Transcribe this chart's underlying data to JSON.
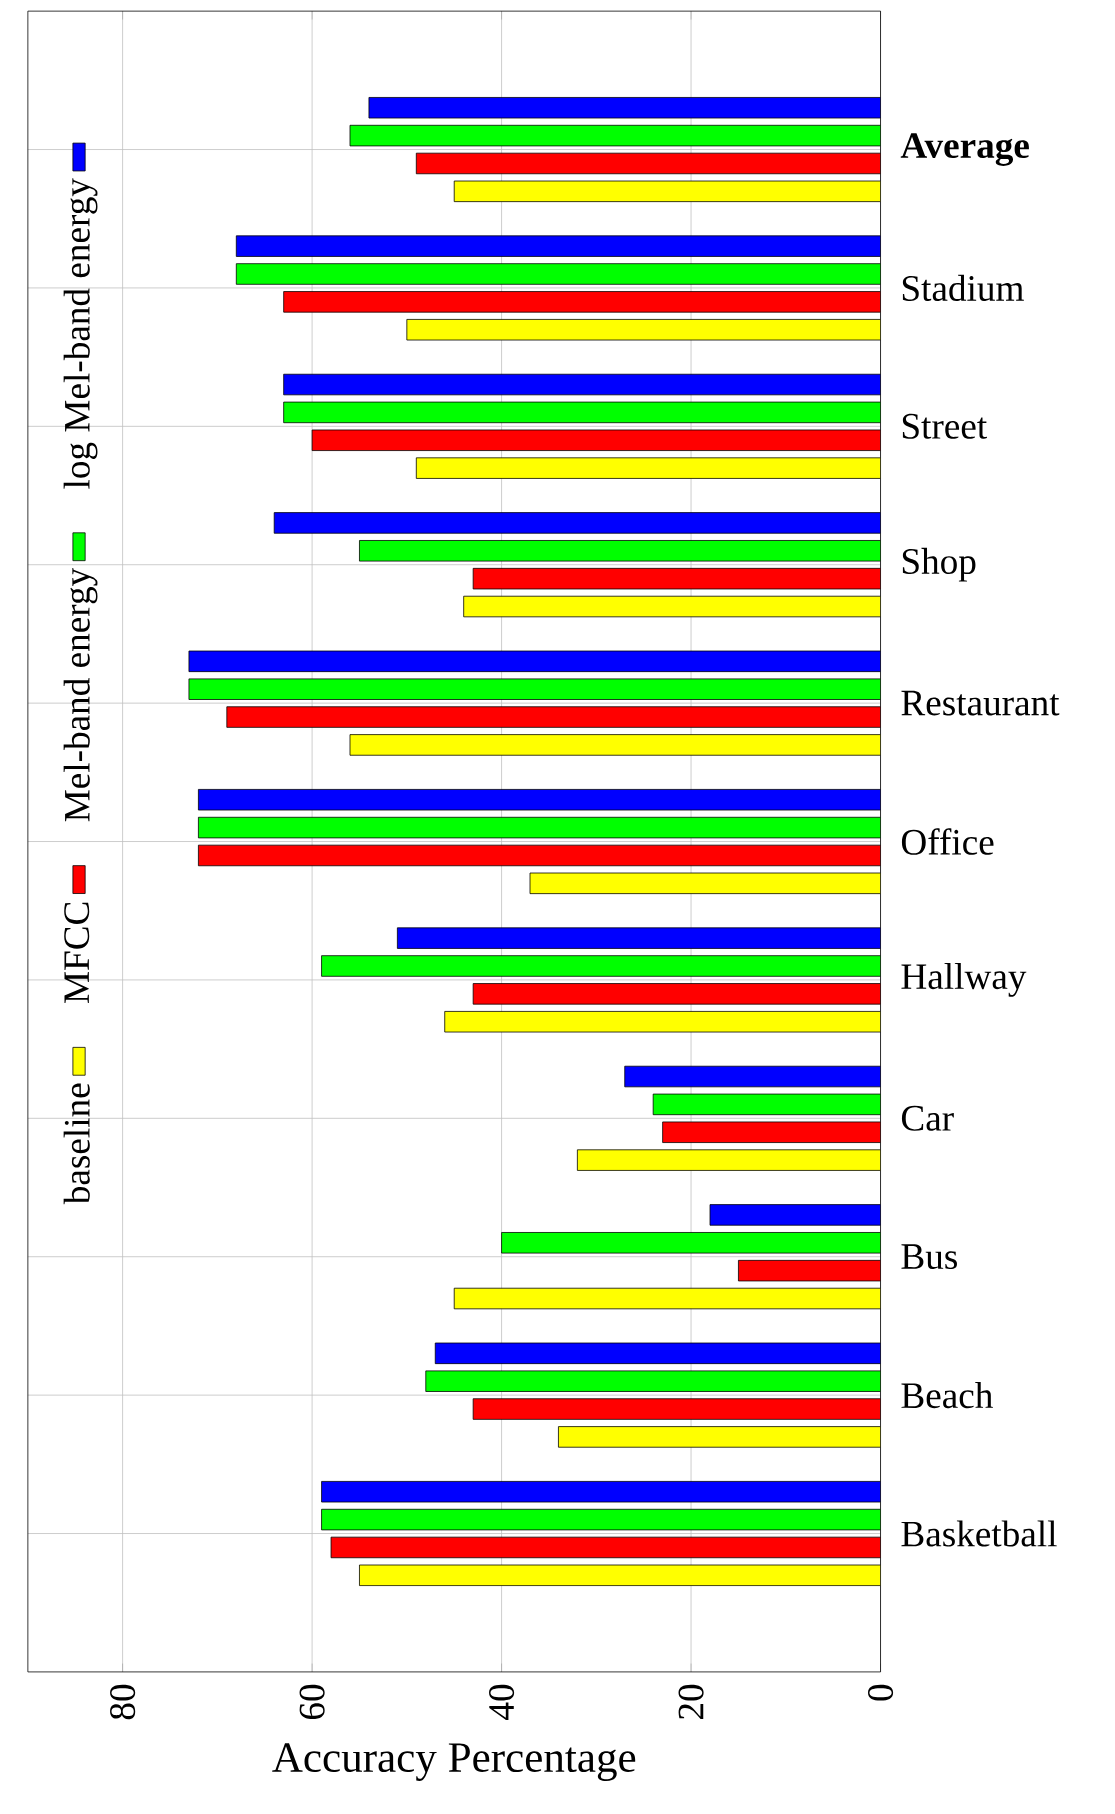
{
  "chart_data": {
    "type": "bar",
    "orientation": "horizontal",
    "xlabel": "Accuracy Percentage",
    "categories": [
      "Average",
      "Stadium",
      "Street",
      "Shop",
      "Restaurant",
      "Office",
      "Hallway",
      "Car",
      "Bus",
      "Beach",
      "Basketball"
    ],
    "series": [
      {
        "name": "baseline",
        "color": "#ffff00",
        "values": [
          45,
          50,
          49,
          44,
          56,
          37,
          46,
          32,
          45,
          34,
          55
        ]
      },
      {
        "name": "MFCC",
        "color": "#ff0000",
        "values": [
          49,
          63,
          60,
          43,
          69,
          72,
          43,
          23,
          15,
          43,
          58
        ]
      },
      {
        "name": "Mel-band energy",
        "color": "#00ff00",
        "values": [
          56,
          68,
          63,
          55,
          73,
          72,
          59,
          24,
          40,
          48,
          59
        ]
      },
      {
        "name": "log Mel-band energy",
        "color": "#0000ff",
        "values": [
          54,
          68,
          63,
          64,
          73,
          72,
          51,
          27,
          18,
          47,
          59
        ]
      }
    ],
    "xlim": [
      90,
      0
    ],
    "xticks": [
      0,
      20,
      40,
      60,
      80
    ],
    "grid": true,
    "legend": "left"
  }
}
